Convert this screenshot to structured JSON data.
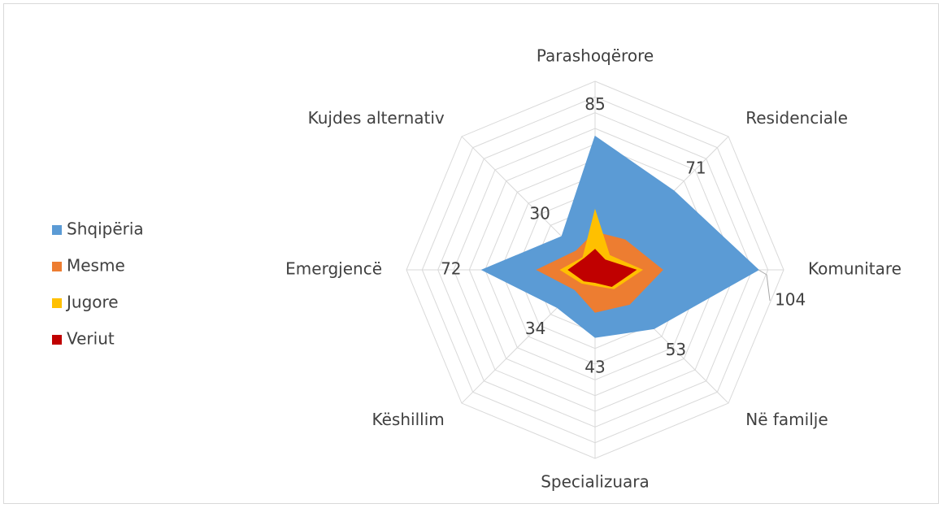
{
  "chart_data": {
    "type": "radar",
    "categories": [
      "Parashoqërore",
      "Residenciale",
      "Komunitare",
      "Në familje",
      "Specializuara",
      "Këshillim",
      "Emergjencë",
      "Kujdes alternativ"
    ],
    "series": [
      {
        "name": "Shqipëria",
        "color": "#5b9bd5",
        "values": [
          85,
          71,
          104,
          53,
          43,
          34,
          72,
          30
        ]
      },
      {
        "name": "Mesme",
        "color": "#ed7d31",
        "values": [
          24,
          27,
          43,
          31,
          27,
          18,
          37,
          17
        ]
      },
      {
        "name": "Jugore",
        "color": "#ffc000",
        "values": [
          38,
          13,
          30,
          17,
          10,
          12,
          22,
          11
        ]
      },
      {
        "name": "Veriut",
        "color": "#c00000",
        "values": [
          13,
          9,
          26,
          15,
          8,
          10,
          17,
          10
        ]
      }
    ],
    "ylim": [
      0,
      120
    ],
    "yticks": [
      0,
      10,
      20,
      30,
      40,
      50,
      60,
      70,
      80,
      90,
      100,
      110,
      120
    ],
    "grid": true,
    "legend": "left",
    "data_labels_series": 0
  }
}
